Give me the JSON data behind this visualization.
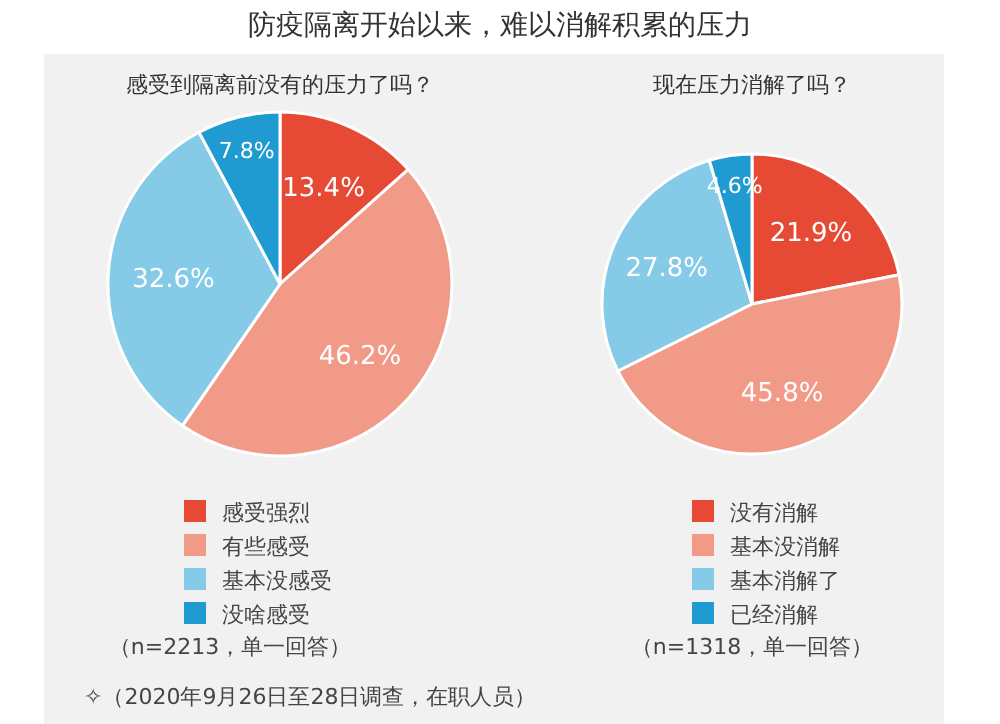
{
  "chart_data": [
    {
      "type": "pie",
      "title": "防疫隔离开始以来，难以消解积累的压力",
      "subtitle": "感受到隔离前没有的压力了吗？",
      "categories": [
        "感受强烈",
        "有些感受",
        "基本没感受",
        "没啥感受"
      ],
      "values": [
        13.4,
        46.2,
        32.6,
        7.8
      ],
      "colors": [
        "#e64a35",
        "#f19a88",
        "#85cbe8",
        "#1f9bd1"
      ],
      "value_labels": [
        "13.4%",
        "46.2%",
        "32.6%",
        "7.8%"
      ],
      "legend": "bottom",
      "annotations": [
        "（n=2213，单一回答）",
        "✧（2020年9月26日至28日调查，在职人员）"
      ]
    },
    {
      "type": "pie",
      "subtitle": "现在压力消解了吗？",
      "categories": [
        "没有消解",
        "基本没消解",
        "基本消解了",
        "已经消解"
      ],
      "values": [
        21.9,
        45.8,
        27.8,
        4.6
      ],
      "colors": [
        "#e64a35",
        "#f19a88",
        "#85cbe8",
        "#1f9bd1"
      ],
      "value_labels": [
        "21.9%",
        "45.8%",
        "27.8%",
        "4.6%"
      ],
      "legend": "bottom",
      "annotations": [
        "（n=1318，单一回答）"
      ]
    }
  ]
}
